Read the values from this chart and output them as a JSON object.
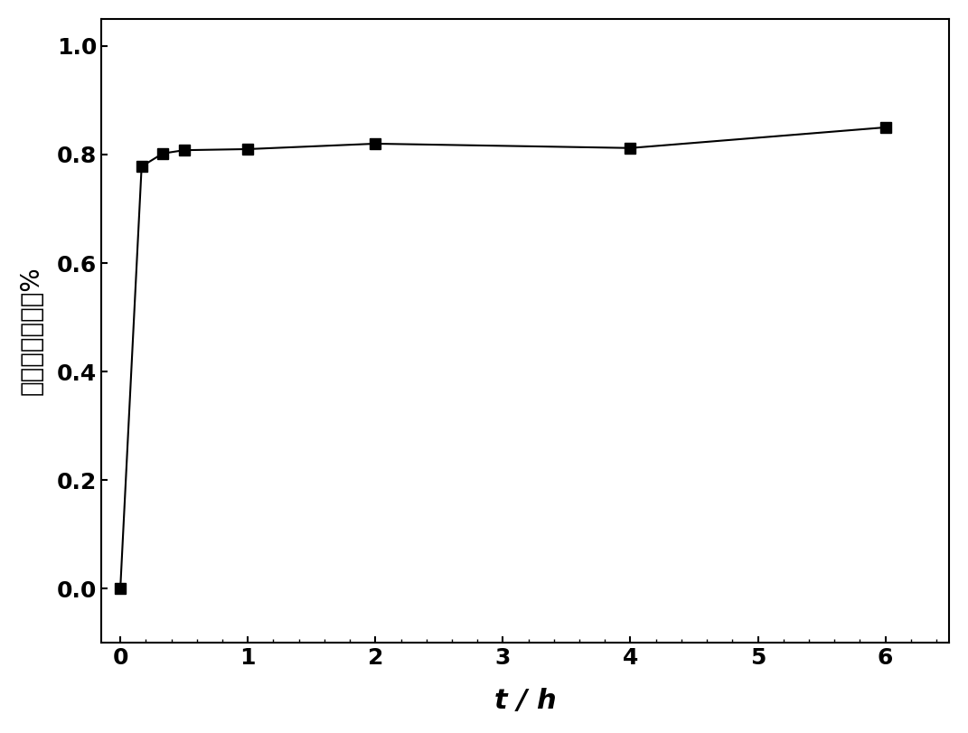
{
  "x": [
    0,
    0.167,
    0.333,
    0.5,
    1.0,
    2.0,
    4.0,
    6.0
  ],
  "y": [
    0.0,
    0.778,
    0.802,
    0.808,
    0.81,
    0.82,
    0.812,
    0.85
  ],
  "xlabel": "t / h",
  "ylabel": "累积释放百分率%",
  "xlim": [
    -0.15,
    6.5
  ],
  "ylim": [
    -0.1,
    1.05
  ],
  "xticks": [
    0,
    1,
    2,
    3,
    4,
    5,
    6
  ],
  "yticks": [
    0.0,
    0.2,
    0.4,
    0.6,
    0.8,
    1.0
  ],
  "marker_color": "#000000",
  "line_color": "#000000",
  "bg_color": "#ffffff",
  "marker_size": 8,
  "line_width": 1.5
}
